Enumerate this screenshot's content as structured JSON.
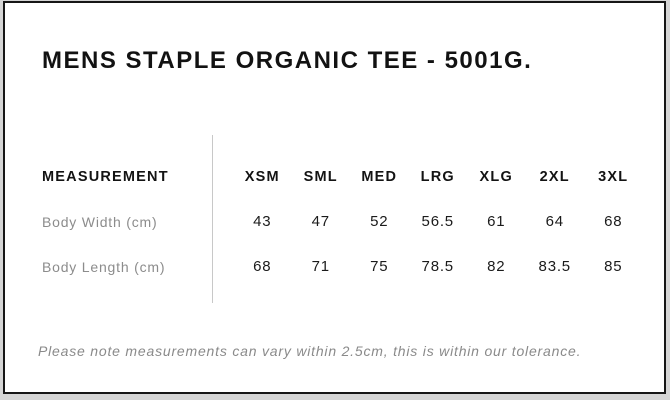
{
  "title": "MENS STAPLE ORGANIC TEE - 5001G.",
  "table": {
    "header_label": "MEASUREMENT",
    "sizes": [
      "XSM",
      "SML",
      "MED",
      "LRG",
      "XLG",
      "2XL",
      "3XL"
    ],
    "rows": [
      {
        "label": "Body Width (cm)",
        "values": [
          "43",
          "47",
          "52",
          "56.5",
          "61",
          "64",
          "68"
        ]
      },
      {
        "label": "Body Length (cm)",
        "values": [
          "68",
          "71",
          "75",
          "78.5",
          "82",
          "83.5",
          "85"
        ]
      }
    ]
  },
  "note": "Please note measurements can vary within 2.5cm, this is within our tolerance.",
  "colors": {
    "card_background": "#ffffff",
    "card_border": "#161616",
    "outside_background": "#d5d5d5",
    "divider": "#c8c8c8",
    "title_text": "#121212",
    "header_text": "#131313",
    "label_text": "#8c8c8c",
    "value_text": "#1b1b1b",
    "note_text": "#8a8a8a"
  }
}
